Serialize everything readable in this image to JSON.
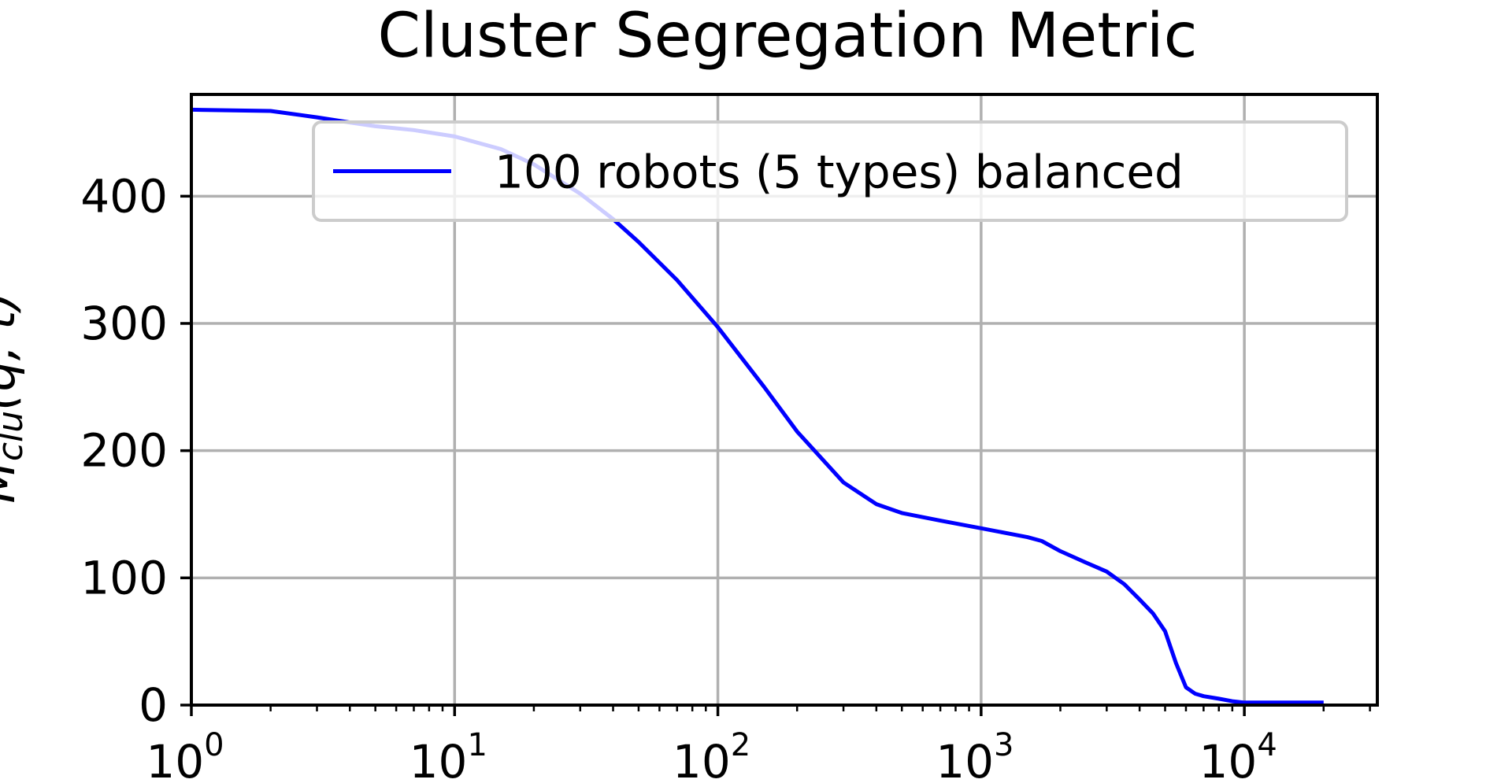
{
  "chart_data": {
    "type": "line",
    "title": "Cluster Segregation Metric",
    "xlabel": "",
    "ylabel": "M_clu(q, t)",
    "ylabel_main": "M",
    "ylabel_sub": "clu",
    "ylabel_args": "(q, t)",
    "xscale": "log",
    "xlim": [
      1,
      32000
    ],
    "ylim": [
      0,
      480
    ],
    "grid": true,
    "legend_position": "top-right",
    "line_color": "#0000ff",
    "x_ticks": [
      {
        "base": "10",
        "exp": "0",
        "value": 1
      },
      {
        "base": "10",
        "exp": "1",
        "value": 10
      },
      {
        "base": "10",
        "exp": "2",
        "value": 100
      },
      {
        "base": "10",
        "exp": "3",
        "value": 1000
      },
      {
        "base": "10",
        "exp": "4",
        "value": 10000
      }
    ],
    "y_ticks": [
      {
        "label": "0",
        "value": 0
      },
      {
        "label": "100",
        "value": 100
      },
      {
        "label": "200",
        "value": 200
      },
      {
        "label": "300",
        "value": 300
      },
      {
        "label": "400",
        "value": 400
      }
    ],
    "series": [
      {
        "name": "100 robots (5 types) balanced",
        "color": "#0000ff",
        "x": [
          1,
          2,
          3,
          4,
          5,
          7,
          10,
          15,
          20,
          30,
          40,
          50,
          70,
          100,
          150,
          200,
          300,
          400,
          500,
          700,
          1000,
          1500,
          1700,
          2000,
          2500,
          3000,
          3500,
          4000,
          4500,
          5000,
          5500,
          6000,
          6500,
          7000,
          8000,
          9000,
          10000,
          12000,
          15000,
          20000
        ],
        "y": [
          468,
          467,
          462,
          458,
          455,
          452,
          447,
          437,
          425,
          402,
          382,
          364,
          334,
          297,
          250,
          215,
          175,
          158,
          151,
          145,
          139,
          132,
          129,
          121,
          112,
          105,
          95,
          83,
          72,
          58,
          33,
          14,
          9,
          7,
          5,
          3,
          2,
          2,
          2,
          2
        ]
      }
    ]
  }
}
